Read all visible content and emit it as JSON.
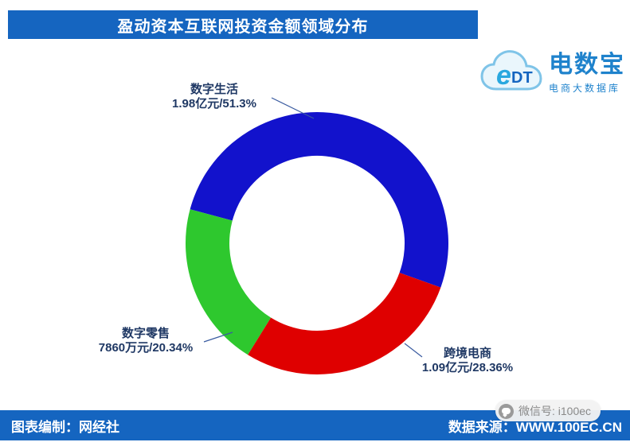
{
  "header": {
    "title": "盈动资本互联网投资金额领域分布"
  },
  "logo": {
    "cloud_e": "e",
    "cloud_dt": "DT",
    "brand": "电数宝",
    "subtitle": "电商大数据库"
  },
  "chart_data": {
    "type": "pie",
    "donut": true,
    "title": "盈动资本互联网投资金额领域分布",
    "legend_position": "none",
    "start_angle_deg": -75,
    "segments": [
      {
        "label": "数字生活",
        "value_label": "1.98亿元/51.3%",
        "amount_label": "1.98亿元",
        "percent": 51.3,
        "color": "#1212CC"
      },
      {
        "label": "跨境电商",
        "value_label": "1.09亿元/28.36%",
        "amount_label": "1.09亿元",
        "percent": 28.36,
        "color": "#DF0000"
      },
      {
        "label": "数字零售",
        "value_label": "7860万元/20.34%",
        "amount_label": "7860万元",
        "percent": 20.34,
        "color": "#2EC82E"
      }
    ]
  },
  "footer": {
    "left": "图表编制：网经社",
    "right": "数据来源：WWW.100EC.CN"
  },
  "watermark": {
    "text": "微信号: i100ec"
  }
}
